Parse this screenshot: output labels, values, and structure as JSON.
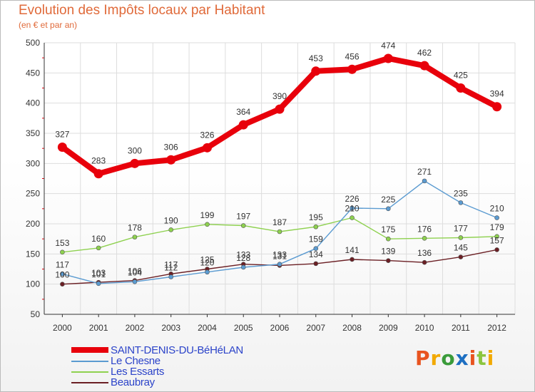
{
  "header": {
    "title": "Evolution des Impôts locaux par Habitant",
    "subtitle": "(en € et par an)"
  },
  "logo": {
    "text": "Proxiti",
    "colors": [
      "#e8541f",
      "#f2a900",
      "#3a9b3a",
      "#1d6fc2",
      "#e8541f",
      "#8bc53f",
      "#f2a900"
    ]
  },
  "chart_data": {
    "type": "line",
    "title": "Evolution des Impôts locaux par Habitant",
    "subtitle": "(en € et par an)",
    "xlabel": "",
    "ylabel": "",
    "x": [
      "2000",
      "2001",
      "2002",
      "2003",
      "2004",
      "2005",
      "2006",
      "2007",
      "2008",
      "2009",
      "2010",
      "2011",
      "2012"
    ],
    "ylim": [
      50,
      500
    ],
    "yticks": [
      "50",
      "100",
      "150",
      "200",
      "250",
      "300",
      "350",
      "400",
      "450",
      "500"
    ],
    "grid": true,
    "legend_position": "bottom-left",
    "series": [
      {
        "name": "SAINT-DENIS-DU-BéHéLAN",
        "color": "#e8000b",
        "values": [
          327,
          283,
          300,
          306,
          326,
          364,
          390,
          453,
          456,
          474,
          462,
          425,
          394
        ],
        "labels": [
          "327",
          "283",
          "300",
          "306",
          "326",
          "364",
          "390",
          "453",
          "456",
          "474",
          "462",
          "425",
          "394"
        ]
      },
      {
        "name": "Le Chesne",
        "color": "#5b9bd1",
        "values": [
          117,
          101,
          104,
          112,
          120,
          128,
          133,
          159,
          226,
          225,
          271,
          235,
          210
        ],
        "labels": [
          "117",
          "101",
          "104",
          "112",
          "120",
          "128",
          "133",
          "159",
          "226",
          "225",
          "271",
          "235",
          "210"
        ]
      },
      {
        "name": "Les Essarts",
        "color": "#8ed14f",
        "values": [
          153,
          160,
          178,
          190,
          199,
          197,
          187,
          195,
          210,
          175,
          176,
          177,
          179
        ],
        "labels": [
          "153",
          "160",
          "178",
          "190",
          "199",
          "197",
          "187",
          "195",
          "210",
          "175",
          "176",
          "177",
          "179"
        ]
      },
      {
        "name": "Beaubray",
        "color": "#6b1f24",
        "values": [
          100,
          103,
          106,
          117,
          125,
          133,
          131,
          134,
          141,
          139,
          136,
          145,
          157
        ],
        "labels": [
          "100",
          "103",
          "106",
          "117",
          "125",
          "133",
          "131",
          "134",
          "141",
          "139",
          "136",
          "145",
          "157"
        ]
      }
    ]
  }
}
